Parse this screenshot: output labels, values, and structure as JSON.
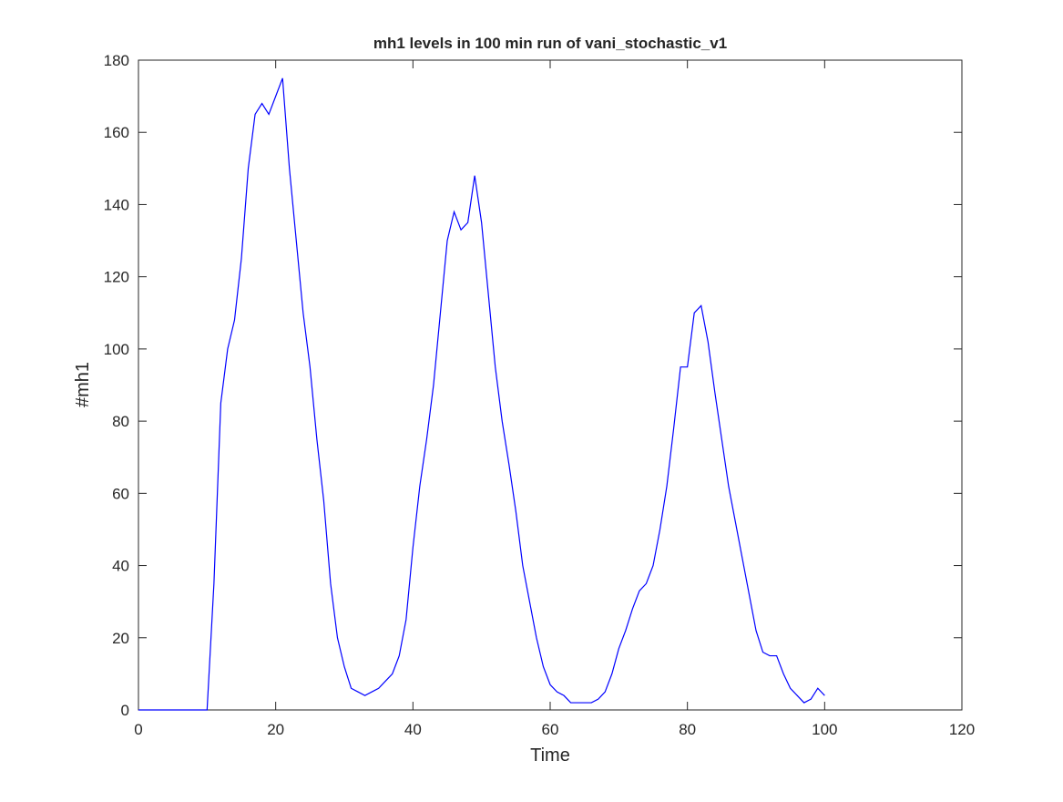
{
  "chart_data": {
    "type": "line",
    "title": "mh1 levels in 100 min run of vani_stochastic_v1",
    "xlabel": "Time",
    "ylabel": "#mh1",
    "x": [
      0,
      1,
      2,
      3,
      4,
      5,
      6,
      7,
      8,
      9,
      10,
      11,
      12,
      13,
      14,
      15,
      16,
      17,
      18,
      19,
      20,
      21,
      22,
      23,
      24,
      25,
      26,
      27,
      28,
      29,
      30,
      31,
      32,
      33,
      34,
      35,
      36,
      37,
      38,
      39,
      40,
      41,
      42,
      43,
      44,
      45,
      46,
      47,
      48,
      49,
      50,
      51,
      52,
      53,
      54,
      55,
      56,
      57,
      58,
      59,
      60,
      61,
      62,
      63,
      64,
      65,
      66,
      67,
      68,
      69,
      70,
      71,
      72,
      73,
      74,
      75,
      76,
      77,
      78,
      79,
      80,
      81,
      82,
      83,
      84,
      85,
      86,
      87,
      88,
      89,
      90,
      91,
      92,
      93,
      94,
      95,
      96,
      97,
      98,
      99,
      100
    ],
    "series": [
      {
        "name": "mh1",
        "color": "#0000ff",
        "values": [
          0,
          0,
          0,
          0,
          0,
          0,
          0,
          0,
          0,
          0,
          0,
          35,
          85,
          100,
          108,
          125,
          150,
          165,
          168,
          165,
          170,
          175,
          150,
          130,
          110,
          95,
          75,
          58,
          35,
          20,
          12,
          6,
          5,
          4,
          5,
          6,
          8,
          10,
          15,
          25,
          45,
          62,
          75,
          90,
          110,
          130,
          138,
          133,
          135,
          148,
          135,
          115,
          95,
          80,
          68,
          55,
          40,
          30,
          20,
          12,
          7,
          5,
          4,
          2,
          2,
          2,
          2,
          3,
          5,
          10,
          17,
          22,
          28,
          33,
          35,
          40,
          50,
          62,
          78,
          95,
          95,
          110,
          112,
          102,
          88,
          75,
          62,
          52,
          42,
          32,
          22,
          16,
          15,
          15,
          10,
          6,
          4,
          2,
          3,
          6,
          4
        ]
      }
    ],
    "xlim": [
      0,
      120
    ],
    "ylim": [
      0,
      180
    ],
    "xticks": [
      0,
      20,
      40,
      60,
      80,
      100,
      120
    ],
    "yticks": [
      0,
      20,
      40,
      60,
      80,
      100,
      120,
      140,
      160,
      180
    ]
  }
}
